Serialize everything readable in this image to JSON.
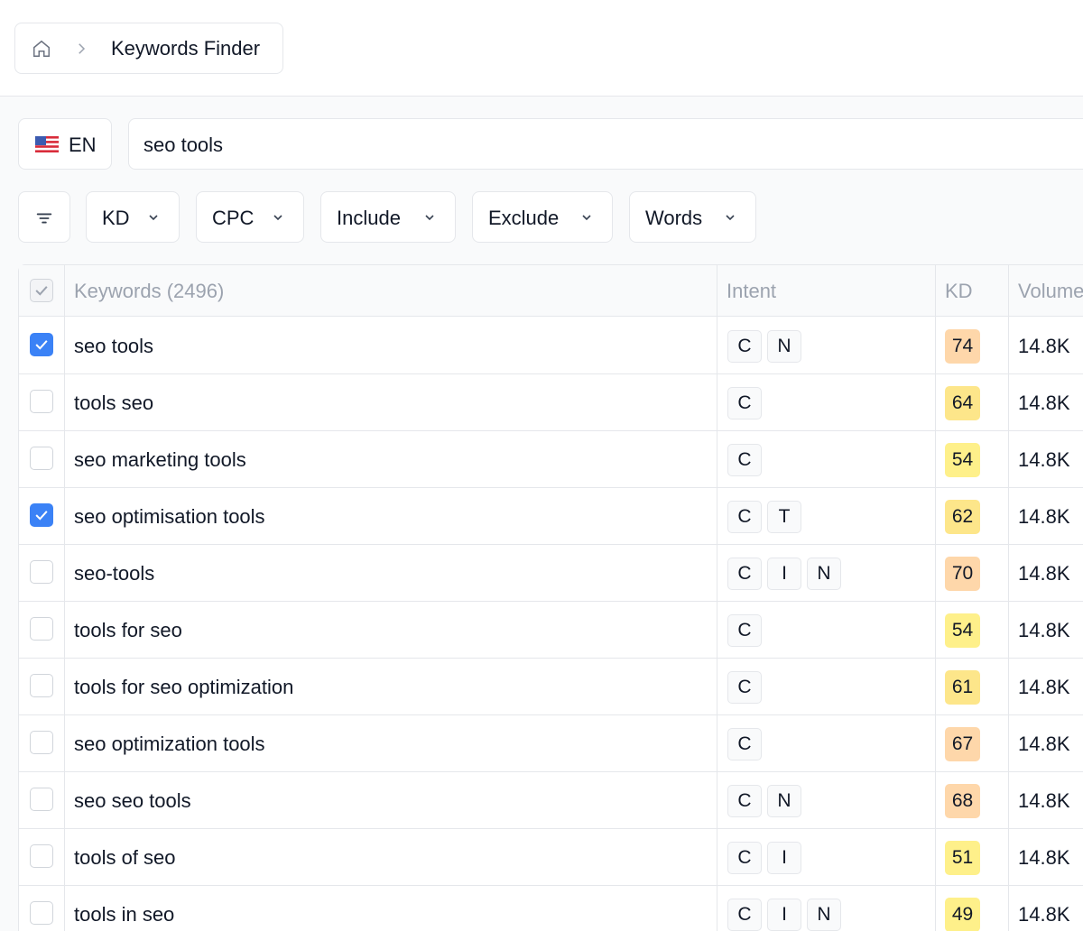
{
  "breadcrumb": {
    "current": "Keywords Finder"
  },
  "language": "EN",
  "search": {
    "query": "seo tools"
  },
  "filters": [
    "KD",
    "CPC",
    "Include",
    "Exclude",
    "Words"
  ],
  "table": {
    "columns": [
      "Keywords (2496)",
      "Intent",
      "KD",
      "Volume"
    ],
    "rows": [
      {
        "keyword": "seo tools",
        "checked": true,
        "intent": [
          "C",
          "N"
        ],
        "kd": 74,
        "volume": "14.8K"
      },
      {
        "keyword": "tools seo",
        "checked": false,
        "intent": [
          "C"
        ],
        "kd": 64,
        "volume": "14.8K"
      },
      {
        "keyword": "seo marketing tools",
        "checked": false,
        "intent": [
          "C"
        ],
        "kd": 54,
        "volume": "14.8K"
      },
      {
        "keyword": "seo optimisation tools",
        "checked": true,
        "intent": [
          "C",
          "T"
        ],
        "kd": 62,
        "volume": "14.8K"
      },
      {
        "keyword": "seo-tools",
        "checked": false,
        "intent": [
          "C",
          "I",
          "N"
        ],
        "kd": 70,
        "volume": "14.8K"
      },
      {
        "keyword": "tools for seo",
        "checked": false,
        "intent": [
          "C"
        ],
        "kd": 54,
        "volume": "14.8K"
      },
      {
        "keyword": "tools for seo optimization",
        "checked": false,
        "intent": [
          "C"
        ],
        "kd": 61,
        "volume": "14.8K"
      },
      {
        "keyword": "seo optimization tools",
        "checked": false,
        "intent": [
          "C"
        ],
        "kd": 67,
        "volume": "14.8K"
      },
      {
        "keyword": "seo seo tools",
        "checked": false,
        "intent": [
          "C",
          "N"
        ],
        "kd": 68,
        "volume": "14.8K"
      },
      {
        "keyword": "tools of seo",
        "checked": false,
        "intent": [
          "C",
          "I"
        ],
        "kd": 51,
        "volume": "14.8K"
      },
      {
        "keyword": "tools in seo",
        "checked": false,
        "intent": [
          "C",
          "I",
          "N"
        ],
        "kd": 49,
        "volume": "14.8K"
      }
    ]
  }
}
